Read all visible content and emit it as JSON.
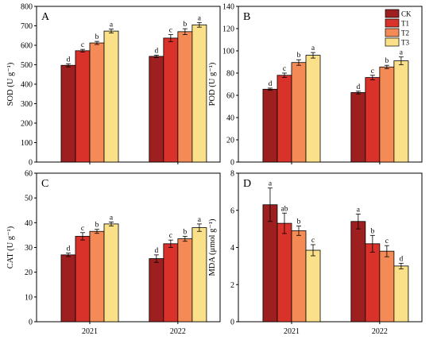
{
  "colors": {
    "CK": "#9e1f1f",
    "T1": "#d8322a",
    "T2": "#f48b56",
    "T3": "#fbe08a"
  },
  "legend": [
    "CK",
    "T1",
    "T2",
    "T3"
  ],
  "chart_data": [
    {
      "panel": "A",
      "type": "bar",
      "ylabel": "SOD (U g⁻¹)",
      "ylim": [
        0,
        800
      ],
      "yticks": [
        0,
        100,
        200,
        300,
        400,
        500,
        600,
        700,
        800
      ],
      "categories": [
        "2021",
        "2022"
      ],
      "series": [
        {
          "name": "CK",
          "values": [
            497,
            543
          ],
          "errors": [
            8,
            6
          ],
          "labels": [
            "d",
            "d"
          ]
        },
        {
          "name": "T1",
          "values": [
            572,
            637
          ],
          "errors": [
            7,
            18
          ],
          "labels": [
            "c",
            "c"
          ]
        },
        {
          "name": "T2",
          "values": [
            612,
            670
          ],
          "errors": [
            8,
            15
          ],
          "labels": [
            "b",
            "b"
          ]
        },
        {
          "name": "T3",
          "values": [
            673,
            705
          ],
          "errors": [
            10,
            12
          ],
          "labels": [
            "a",
            "a"
          ]
        }
      ]
    },
    {
      "panel": "B",
      "type": "bar",
      "ylabel": "POD (U g⁻¹)",
      "ylim": [
        0,
        140
      ],
      "yticks": [
        0,
        20,
        40,
        60,
        80,
        100,
        120,
        140
      ],
      "categories": [
        "2021",
        "2022"
      ],
      "series": [
        {
          "name": "CK",
          "values": [
            65.5,
            62.5
          ],
          "errors": [
            1,
            1.2
          ],
          "labels": [
            "d",
            "d"
          ]
        },
        {
          "name": "T1",
          "values": [
            78,
            76
          ],
          "errors": [
            2,
            2
          ],
          "labels": [
            "c",
            "c"
          ]
        },
        {
          "name": "T2",
          "values": [
            89.5,
            85.5
          ],
          "errors": [
            2.5,
            1.5
          ],
          "labels": [
            "b",
            "b"
          ]
        },
        {
          "name": "T3",
          "values": [
            96,
            91
          ],
          "errors": [
            2.5,
            3.5
          ],
          "labels": [
            "a",
            "a"
          ]
        }
      ]
    },
    {
      "panel": "C",
      "type": "bar",
      "ylabel": "CAT (U g⁻¹)",
      "ylim": [
        0,
        60
      ],
      "yticks": [
        0,
        10,
        20,
        30,
        40,
        50,
        60
      ],
      "categories": [
        "2021",
        "2022"
      ],
      "series": [
        {
          "name": "CK",
          "values": [
            27,
            25.5
          ],
          "errors": [
            0.7,
            1.5
          ],
          "labels": [
            "d",
            "d"
          ]
        },
        {
          "name": "T1",
          "values": [
            34.5,
            31.5
          ],
          "errors": [
            1.5,
            1.5
          ],
          "labels": [
            "c",
            "c"
          ]
        },
        {
          "name": "T2",
          "values": [
            36.5,
            33.5
          ],
          "errors": [
            0.8,
            1
          ],
          "labels": [
            "b",
            "b"
          ]
        },
        {
          "name": "T3",
          "values": [
            39.5,
            38
          ],
          "errors": [
            0.8,
            1.5
          ],
          "labels": [
            "a",
            "a"
          ]
        }
      ]
    },
    {
      "panel": "D",
      "type": "bar",
      "ylabel": "MDA (μmol g⁻¹)",
      "ylim": [
        0,
        8
      ],
      "yticks": [
        0,
        2,
        4,
        6,
        8
      ],
      "categories": [
        "2021",
        "2022"
      ],
      "series": [
        {
          "name": "CK",
          "values": [
            6.3,
            5.4
          ],
          "errors": [
            0.9,
            0.4
          ],
          "labels": [
            "a",
            "a"
          ]
        },
        {
          "name": "T1",
          "values": [
            5.3,
            4.2
          ],
          "errors": [
            0.55,
            0.45
          ],
          "labels": [
            "ab",
            "b"
          ]
        },
        {
          "name": "T2",
          "values": [
            4.9,
            3.8
          ],
          "errors": [
            0.25,
            0.3
          ],
          "labels": [
            "b",
            "c"
          ]
        },
        {
          "name": "T3",
          "values": [
            3.85,
            3.0
          ],
          "errors": [
            0.3,
            0.15
          ],
          "labels": [
            "c",
            "d"
          ]
        }
      ]
    }
  ]
}
